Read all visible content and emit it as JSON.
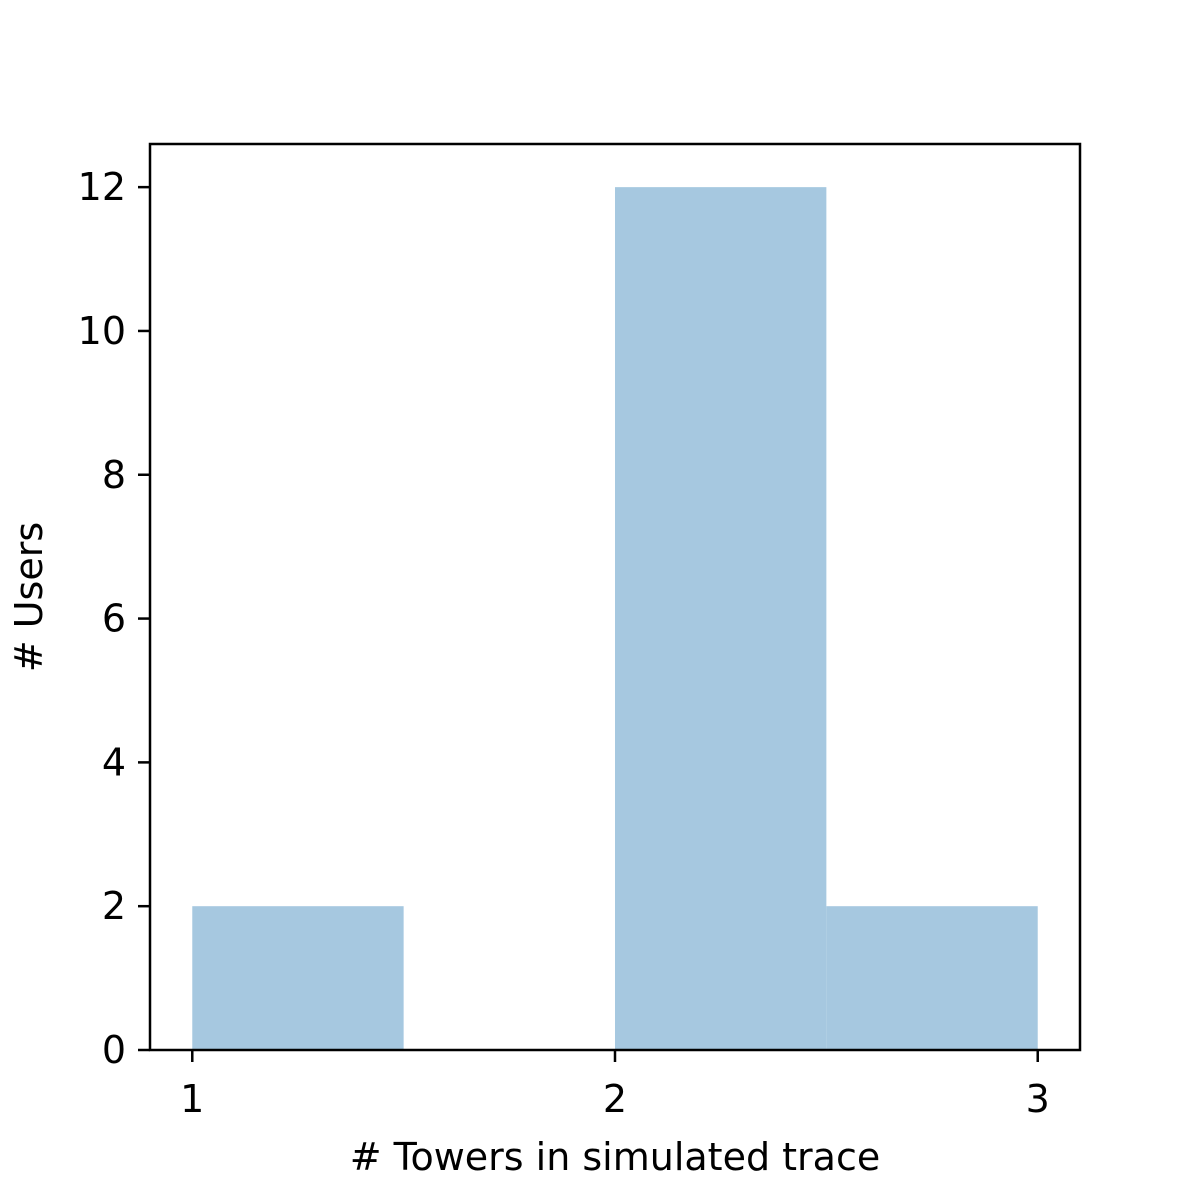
{
  "colors": {
    "bar": "#a6c8e0",
    "axis": "#000000",
    "background": "#ffffff"
  },
  "chart_data": {
    "type": "bar",
    "title": "",
    "xlabel": "# Towers in simulated trace",
    "ylabel": "# Users",
    "xlim": [
      0.9,
      3.1
    ],
    "ylim": [
      0,
      12.6
    ],
    "grid": false,
    "legend": "none",
    "bins": [
      {
        "x0": 1.0,
        "x1": 1.5,
        "count": 2
      },
      {
        "x0": 1.5,
        "x1": 2.0,
        "count": 0
      },
      {
        "x0": 2.0,
        "x1": 2.5,
        "count": 12
      },
      {
        "x0": 2.5,
        "x1": 3.0,
        "count": 2
      }
    ],
    "xticks": [
      {
        "value": 1,
        "label": "1"
      },
      {
        "value": 2,
        "label": "2"
      },
      {
        "value": 3,
        "label": "3"
      }
    ],
    "yticks": [
      {
        "value": 0,
        "label": "0"
      },
      {
        "value": 2,
        "label": "2"
      },
      {
        "value": 4,
        "label": "4"
      },
      {
        "value": 6,
        "label": "6"
      },
      {
        "value": 8,
        "label": "8"
      },
      {
        "value": 10,
        "label": "10"
      },
      {
        "value": 12,
        "label": "12"
      }
    ]
  }
}
